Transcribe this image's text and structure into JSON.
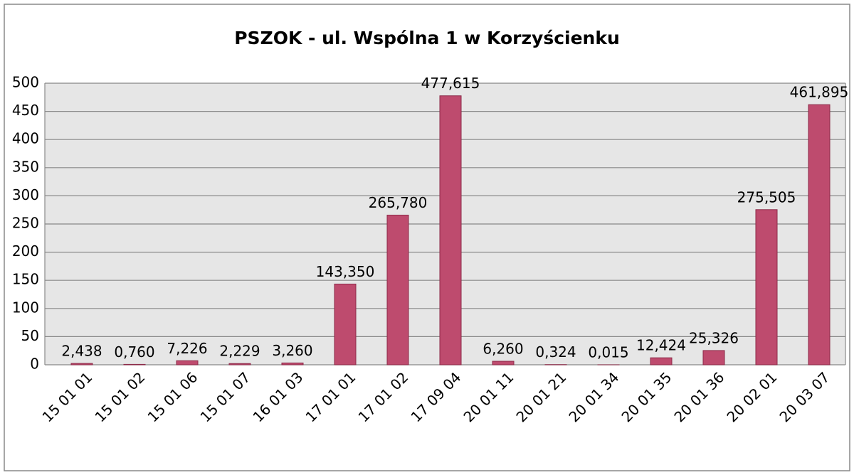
{
  "chart_data": {
    "type": "bar",
    "title": "PSZOK - ul. Wspólna 1 w Korzyścienku",
    "categories": [
      "15 01 01",
      "15 01 02",
      "15 01 06",
      "15 01 07",
      "16 01 03",
      "17 01 01",
      "17 01 02",
      "17 09 04",
      "20 01 11",
      "20 01 21",
      "20 01 34",
      "20 01 35",
      "20 01 36",
      "20 02 01",
      "20 03 07"
    ],
    "values": [
      2.438,
      0.76,
      7.226,
      2.229,
      3.26,
      143.35,
      265.78,
      477.615,
      6.26,
      0.324,
      0.015,
      12.424,
      25.326,
      275.505,
      461.895
    ],
    "value_labels": [
      "2,438",
      "0,760",
      "7,226",
      "2,229",
      "3,260",
      "143,350",
      "265,780",
      "477,615",
      "6,260",
      "0,324",
      "0,015",
      "12,424",
      "25,326",
      "275,505",
      "461,895"
    ],
    "color": "#be4b6e",
    "ylim": [
      0,
      500
    ],
    "yticks": [
      0,
      50,
      100,
      150,
      200,
      250,
      300,
      350,
      400,
      450,
      500
    ],
    "grid": true
  }
}
